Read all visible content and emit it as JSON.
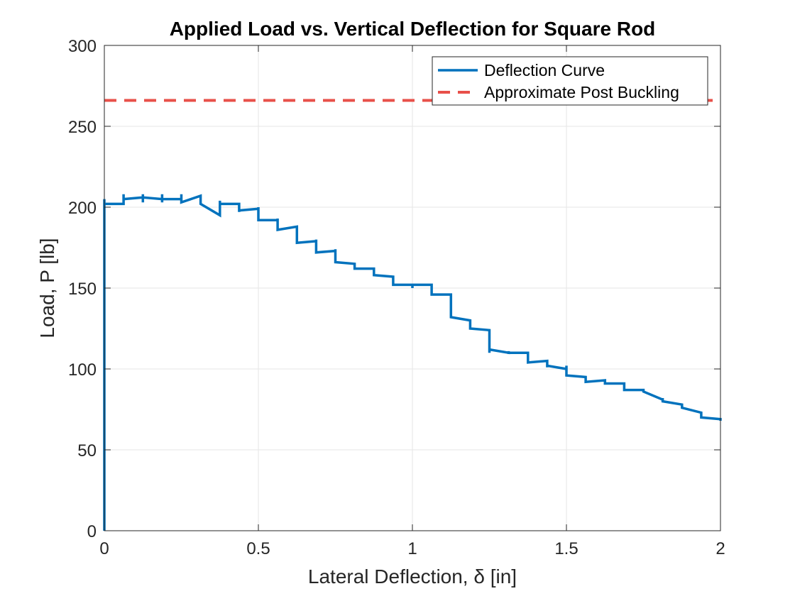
{
  "chart_data": {
    "type": "line",
    "title": "Applied Load vs. Vertical Deflection for Square Rod",
    "xlabel": "Lateral Deflection, δ [in]",
    "ylabel": "Load, P [lb]",
    "xlim": [
      0,
      2
    ],
    "ylim": [
      0,
      300
    ],
    "x_ticks": [
      "0",
      "0.5",
      "1",
      "1.5",
      "2"
    ],
    "y_ticks": [
      "0",
      "50",
      "100",
      "150",
      "200",
      "250",
      "300"
    ],
    "grid": true,
    "legend_position": "top-right",
    "series": [
      {
        "name": "Deflection Curve",
        "color": "#0072BD",
        "style": "solid",
        "x": [
          0,
          0,
          0,
          0.0625,
          0.0625,
          0.0625,
          0.0625,
          0.125,
          0.125,
          0.125,
          0.125,
          0.1875,
          0.1875,
          0.1875,
          0.1875,
          0.25,
          0.25,
          0.25,
          0.3125,
          0.3125,
          0.3125,
          0.375,
          0.375,
          0.375,
          0.4375,
          0.4375,
          0.4375,
          0.5,
          0.5,
          0.5,
          0.5625,
          0.5625,
          0.5625,
          0.625,
          0.625,
          0.625,
          0.6875,
          0.6875,
          0.6875,
          0.75,
          0.75,
          0.75,
          0.8125,
          0.8125,
          0.8125,
          0.875,
          0.875,
          0.875,
          0.9375,
          0.9375,
          0.9375,
          1.0,
          1.0,
          1.0,
          1.0625,
          1.0625,
          1.0625,
          1.125,
          1.125,
          1.125,
          1.1875,
          1.1875,
          1.1875,
          1.25,
          1.25,
          1.25,
          1.3125,
          1.3125,
          1.3125,
          1.375,
          1.375,
          1.375,
          1.4375,
          1.4375,
          1.4375,
          1.5,
          1.5,
          1.5,
          1.5625,
          1.5625,
          1.5625,
          1.625,
          1.625,
          1.625,
          1.6875,
          1.6875,
          1.6875,
          1.75,
          1.75,
          1.75,
          1.8125,
          1.8125,
          1.8125,
          1.875,
          1.875,
          1.875,
          1.9375,
          1.9375,
          1.9375,
          2.0,
          2.0
        ],
        "y": [
          0,
          205,
          202,
          202,
          208,
          202,
          205,
          206,
          208,
          203,
          206,
          205,
          208,
          203,
          205,
          205,
          208,
          203,
          207,
          203,
          202,
          195,
          204,
          202,
          202,
          197,
          198,
          199,
          200,
          192,
          192,
          193,
          186,
          188,
          186,
          178,
          179,
          180,
          172,
          173,
          174,
          166,
          165,
          163,
          162,
          162,
          158,
          158,
          157,
          154,
          152,
          152,
          150,
          152,
          152,
          147,
          146,
          146,
          133,
          132,
          130,
          128,
          125,
          124,
          110,
          112,
          110,
          111,
          110,
          110,
          105,
          104,
          105,
          101,
          102,
          100,
          102,
          96,
          95,
          94,
          92,
          93,
          93,
          91,
          91,
          91,
          87,
          87,
          86,
          86,
          81,
          82,
          80,
          78,
          76,
          76,
          73,
          72,
          70,
          69,
          68
        ]
      },
      {
        "name": "Approximate Post Buckling",
        "color": "#E8504A",
        "style": "dashed",
        "y_constant": 266
      }
    ]
  }
}
